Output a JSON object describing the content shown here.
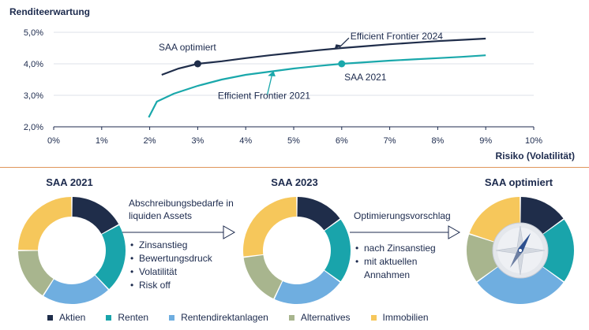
{
  "chart_data": {
    "type": "line",
    "ylabel": "Renditeerwartung",
    "xlabel": "Risiko (Volatilität)",
    "xlim": [
      0,
      10
    ],
    "ylim": [
      2.0,
      5.0
    ],
    "x_ticks": [
      "0%",
      "1%",
      "2%",
      "3%",
      "4%",
      "5%",
      "6%",
      "7%",
      "8%",
      "9%",
      "10%"
    ],
    "y_ticks": [
      "2,0%",
      "3,0%",
      "4,0%",
      "5,0%"
    ],
    "grid": "horizontal",
    "series": [
      {
        "name": "Efficient Frontier 2024",
        "color": "#1f2d4a",
        "x": [
          2.25,
          2.6,
          3.0,
          3.5,
          4.0,
          4.5,
          5.0,
          5.5,
          6.0,
          6.5,
          7.0,
          7.5,
          8.0,
          8.5,
          9.0
        ],
        "y": [
          3.65,
          3.85,
          4.0,
          4.08,
          4.18,
          4.27,
          4.35,
          4.43,
          4.5,
          4.56,
          4.62,
          4.67,
          4.72,
          4.76,
          4.8
        ]
      },
      {
        "name": "Efficient Frontier 2021",
        "color": "#1aa8ab",
        "x": [
          1.98,
          2.15,
          2.5,
          3.0,
          3.5,
          4.0,
          4.5,
          5.0,
          5.5,
          6.0,
          6.5,
          7.0,
          7.5,
          8.0,
          8.5,
          9.0
        ],
        "y": [
          2.3,
          2.8,
          3.05,
          3.3,
          3.5,
          3.65,
          3.75,
          3.85,
          3.93,
          4.0,
          4.05,
          4.1,
          4.14,
          4.18,
          4.22,
          4.27
        ]
      }
    ],
    "points": [
      {
        "label": "SAA optimiert",
        "x": 3.0,
        "y": 4.0,
        "color": "#1f2d4a"
      },
      {
        "label": "SAA 2021",
        "x": 6.0,
        "y": 4.0,
        "color": "#1aa8ab"
      }
    ]
  },
  "donuts": [
    {
      "title": "SAA 2021",
      "values": [
        0.17,
        0.21,
        0.21,
        0.16,
        0.25
      ],
      "compass": false
    },
    {
      "title": "SAA 2023",
      "values": [
        0.15,
        0.2,
        0.22,
        0.16,
        0.27
      ],
      "compass": false
    },
    {
      "title": "SAA optimiert",
      "values": [
        0.15,
        0.2,
        0.3,
        0.15,
        0.2
      ],
      "compass": true
    }
  ],
  "segment_colors": [
    "#1f2d4a",
    "#19a4ab",
    "#6faee0",
    "#a8b58e",
    "#f6c75b"
  ],
  "transition1": {
    "heading": "Abschreibungsbedarfe in liquiden Assets",
    "bullets": [
      "Zinsanstieg",
      "Bewertungsdruck",
      "Volatilität",
      "Risk off"
    ]
  },
  "transition2": {
    "heading": "Optimierungsvorschlag",
    "bullets": [
      "nach Zinsanstieg",
      "mit aktuellen Annahmen"
    ]
  },
  "legend": [
    {
      "label": "Aktien",
      "color": "#1f2d4a"
    },
    {
      "label": "Renten",
      "color": "#19a4ab"
    },
    {
      "label": "Rentendirektanlagen",
      "color": "#6faee0"
    },
    {
      "label": "Alternatives",
      "color": "#a8b58e"
    },
    {
      "label": "Immobilien",
      "color": "#f6c75b"
    }
  ]
}
